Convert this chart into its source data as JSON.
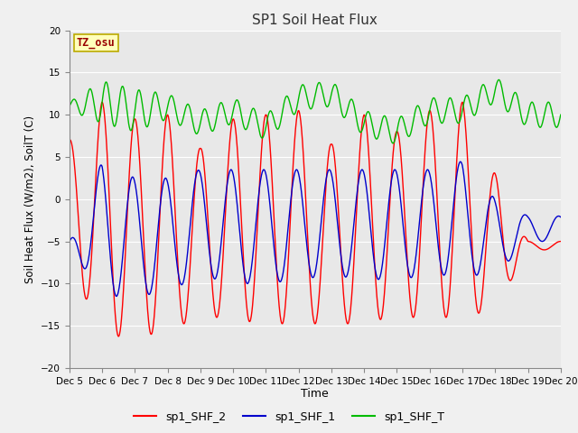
{
  "title": "SP1 Soil Heat Flux",
  "xlabel": "Time",
  "ylabel": "Soil Heat Flux (W/m2), SoilT (C)",
  "ylim": [
    -20,
    20
  ],
  "yticks": [
    -20,
    -15,
    -10,
    -5,
    0,
    5,
    10,
    15,
    20
  ],
  "bg_color": "#e8e8e8",
  "fig_color": "#f0f0f0",
  "line_red": "#ff0000",
  "line_blue": "#0000cc",
  "line_green": "#00bb00",
  "tz_label": "TZ_osu",
  "tz_bg": "#ffffbb",
  "tz_border": "#bbaa00",
  "tz_text_color": "#990000",
  "legend_labels": [
    "sp1_SHF_2",
    "sp1_SHF_1",
    "sp1_SHF_T"
  ],
  "x_tick_labels": [
    "Dec 5",
    "Dec 6",
    "Dec 7",
    "Dec 8",
    "Dec 9",
    "Dec 10",
    "Dec 11",
    "Dec 12",
    "Dec 13",
    "Dec 14",
    "Dec 15",
    "Dec 16",
    "Dec 17",
    "Dec 18",
    "Dec 19",
    "Dec 20"
  ],
  "n_points": 1500
}
